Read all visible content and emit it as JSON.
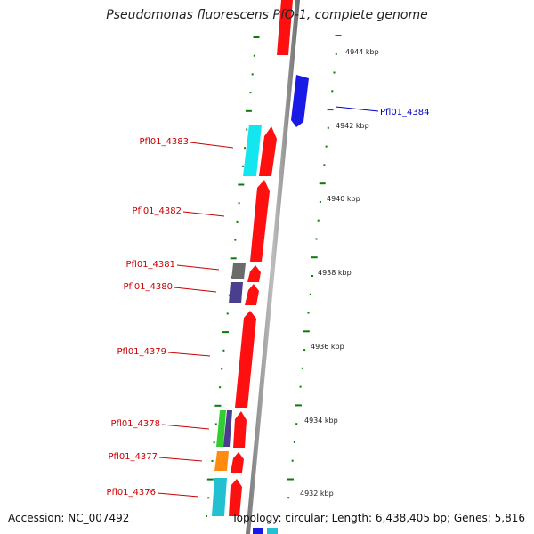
{
  "title": "Pseudomonas fluorescens PfO-1, complete genome",
  "footer": {
    "accession": "Accession: NC_007492",
    "summary": "Topology: circular; Length: 6,438,405 bp; Genes: 5,816"
  },
  "colors": {
    "forward_gene": "#ff1010",
    "reverse_gene": "#1a1ae6",
    "cyan_gene": "#14e6f0",
    "gray_gene": "#6b6b6b",
    "purple_gene": "#4a3f8c",
    "green_gene": "#33cc33",
    "orange_gene": "#ff8c10",
    "teal_gene": "#22c0d0",
    "tick_green": "#0a7a0a",
    "label_red": "#cc0000",
    "label_blue": "#0000cc"
  },
  "scale": {
    "ticks": [
      {
        "label": "4944 kbp"
      },
      {
        "label": "4942 kbp"
      },
      {
        "label": "4940 kbp"
      },
      {
        "label": "4938 kbp"
      },
      {
        "label": "4936 kbp"
      },
      {
        "label": "4934 kbp"
      },
      {
        "label": "4932 kbp"
      }
    ]
  },
  "gene_labels": [
    {
      "name": "Pfl01_4384",
      "strand": "reverse"
    },
    {
      "name": "Pfl01_4383",
      "strand": "forward"
    },
    {
      "name": "Pfl01_4382",
      "strand": "forward"
    },
    {
      "name": "Pfl01_4381",
      "strand": "forward"
    },
    {
      "name": "Pfl01_4380",
      "strand": "forward"
    },
    {
      "name": "Pfl01_4379",
      "strand": "forward"
    },
    {
      "name": "Pfl01_4378",
      "strand": "forward"
    },
    {
      "name": "Pfl01_4377",
      "strand": "forward"
    },
    {
      "name": "Pfl01_4376",
      "strand": "forward"
    }
  ]
}
